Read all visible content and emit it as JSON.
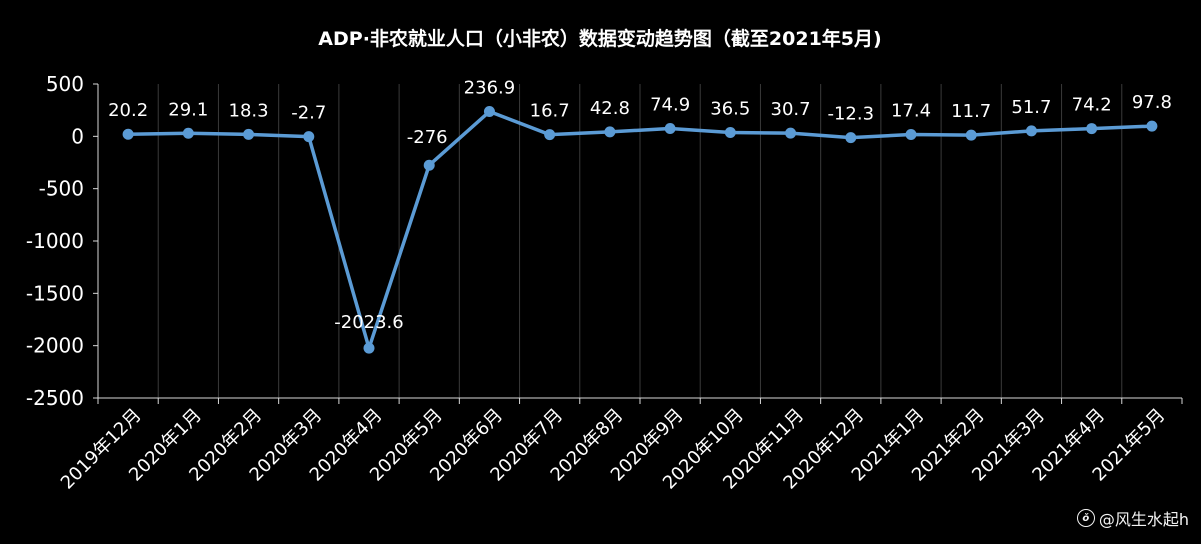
{
  "chart_data": {
    "type": "line",
    "title": "ADP·非农就业人口（小非农）数据变动趋势图（截至2021年5月)",
    "categories": [
      "2019年12月",
      "2020年1月",
      "2020年2月",
      "2020年3月",
      "2020年4月",
      "2020年5月",
      "2020年6月",
      "2020年7月",
      "2020年8月",
      "2020年9月",
      "2020年10月",
      "2020年11月",
      "2020年12月",
      "2021年1月",
      "2021年2月",
      "2021年3月",
      "2021年4月",
      "2021年5月"
    ],
    "values": [
      20.2,
      29.1,
      18.3,
      -2.7,
      -2023.6,
      -276,
      236.9,
      16.7,
      42.8,
      74.9,
      36.5,
      30.7,
      -12.3,
      17.4,
      11.7,
      51.7,
      74.2,
      97.8
    ],
    "value_labels": [
      "20.2",
      "29.1",
      "18.3",
      "-2.7",
      "-2023.6",
      "-276",
      "236.9",
      "16.7",
      "42.8",
      "74.9",
      "36.5",
      "30.7",
      "-12.3",
      "17.4",
      "11.7",
      "51.7",
      "74.2",
      "97.8"
    ],
    "ylim": [
      -2500,
      500
    ],
    "yticks": [
      500,
      0,
      -500,
      -1000,
      -1500,
      -2000,
      -2500
    ],
    "ytick_labels": [
      "500",
      "0",
      "-500",
      "-1000",
      "-1500",
      "-2000",
      "-2500"
    ],
    "xlabel": "",
    "ylabel": "",
    "grid": "vertical",
    "line_color": "#5B9BD5",
    "background": "#000000"
  },
  "watermark": {
    "icon": "weibo-icon",
    "text": "@风生水起h"
  }
}
